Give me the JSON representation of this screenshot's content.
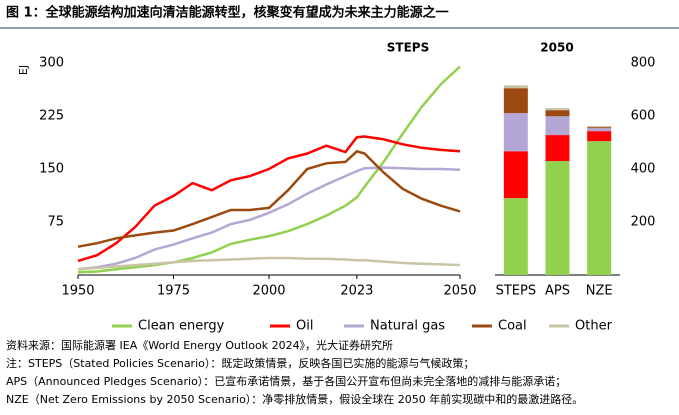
{
  "figure_title": "图 1：全球能源结构加速向清洁能源转型，核聚变有望成为未来主力能源之一",
  "notes": [
    "资料来源：国际能源署 IEA《World Energy Outlook 2024》，光大证券研究所",
    "注：STEPS（Stated Policies Scenario）：既定政策情景，反映各国已实施的能源与气候政策；",
    "APS（Announced Pledges Scenario）：已宣布承诺情景，基于各国公开宣布但尚未完全落地的减排与能源承诺；",
    "NZE（Net Zero Emissions by 2050 Scenario）：净零排放情景，假设全球在 2050 年前实现碳中和的最激进路径。"
  ],
  "chart_data": [
    {
      "type": "line",
      "title": "STEPS",
      "y_label": "EJ",
      "x": [
        1950,
        1955,
        1960,
        1965,
        1970,
        1975,
        1980,
        1985,
        1990,
        1995,
        2000,
        2005,
        2010,
        2015,
        2020,
        2023,
        2025,
        2030,
        2035,
        2040,
        2045,
        2050
      ],
      "xlim": [
        1950,
        2050
      ],
      "xticks": [
        1950,
        1975,
        2000,
        2023,
        2050
      ],
      "ylim": [
        0,
        300
      ],
      "yticks": [
        75,
        150,
        225,
        300
      ],
      "series": [
        {
          "name": "Clean energy",
          "color": "#92d050",
          "values": [
            4,
            5,
            8,
            11,
            14,
            18,
            24,
            32,
            44,
            50,
            55,
            62,
            72,
            84,
            98,
            110,
            125,
            160,
            200,
            238,
            270,
            295
          ]
        },
        {
          "name": "Oil",
          "color": "#ff0000",
          "values": [
            20,
            28,
            45,
            68,
            98,
            112,
            130,
            120,
            134,
            140,
            150,
            165,
            172,
            183,
            174,
            195,
            196,
            192,
            185,
            180,
            177,
            175
          ]
        },
        {
          "name": "Natural gas",
          "color": "#b4a7d6",
          "values": [
            8,
            11,
            16,
            24,
            36,
            43,
            52,
            60,
            72,
            78,
            88,
            100,
            115,
            128,
            140,
            147,
            151,
            152,
            151,
            150,
            150,
            149
          ]
        },
        {
          "name": "Coal",
          "color": "#9c4a10",
          "values": [
            40,
            45,
            52,
            56,
            60,
            63,
            72,
            82,
            92,
            92,
            95,
            120,
            150,
            158,
            160,
            175,
            172,
            145,
            122,
            108,
            98,
            90
          ]
        },
        {
          "name": "Other",
          "color": "#c9c4a5",
          "values": [
            8,
            10,
            12,
            14,
            16,
            18,
            20,
            21,
            22,
            23,
            24,
            24,
            23,
            23,
            22,
            21,
            21,
            19,
            17,
            16,
            15,
            14
          ]
        }
      ]
    },
    {
      "type": "stacked-bar",
      "title": "2050",
      "categories": [
        "STEPS",
        "APS",
        "NZE"
      ],
      "ylim": [
        0,
        800
      ],
      "yticks": [
        200,
        400,
        600,
        800
      ],
      "series": [
        {
          "name": "Clean energy",
          "color": "#92d050",
          "values": [
            290,
            430,
            505
          ]
        },
        {
          "name": "Oil",
          "color": "#ff0000",
          "values": [
            177,
            98,
            38
          ]
        },
        {
          "name": "Natural gas",
          "color": "#b4a7d6",
          "values": [
            144,
            71,
            11
          ]
        },
        {
          "name": "Coal",
          "color": "#9c4a10",
          "values": [
            94,
            23,
            4
          ]
        },
        {
          "name": "Other",
          "color": "#c9c4a5",
          "values": [
            11,
            8,
            4
          ]
        }
      ]
    }
  ]
}
